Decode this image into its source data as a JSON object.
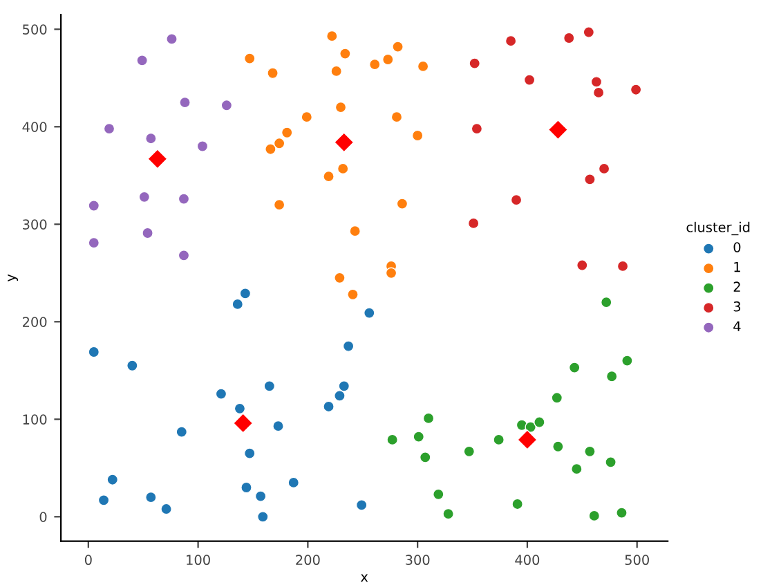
{
  "chart_data": {
    "type": "scatter",
    "xlabel": "x",
    "ylabel": "y",
    "legend_title": "cluster_id",
    "legend": "right",
    "grid": false,
    "marker": "circle",
    "xlim": [
      -25,
      528
    ],
    "ylim": [
      -25,
      515
    ],
    "xticks": [
      0,
      100,
      200,
      300,
      400,
      500
    ],
    "yticks": [
      0,
      100,
      200,
      300,
      400,
      500
    ],
    "series": [
      {
        "name": "0",
        "color": "#1f77b4",
        "x": [
          143,
          136,
          5,
          40,
          237,
          256,
          165,
          233,
          229,
          219,
          121,
          138,
          173,
          85,
          147,
          22,
          14,
          57,
          71,
          144,
          157,
          187,
          159,
          249
        ],
        "values": [
          229,
          218,
          169,
          155,
          175,
          209,
          134,
          134,
          124,
          113,
          126,
          111,
          93,
          87,
          65,
          38,
          17,
          20,
          8,
          30,
          21,
          35,
          0,
          12
        ]
      },
      {
        "name": "1",
        "color": "#ff7f0e",
        "x": [
          147,
          168,
          222,
          234,
          226,
          230,
          199,
          181,
          174,
          166,
          232,
          219,
          174,
          243,
          229,
          241,
          282,
          273,
          261,
          305,
          281,
          300,
          286,
          276,
          276
        ],
        "values": [
          470,
          455,
          493,
          475,
          457,
          420,
          410,
          394,
          383,
          377,
          357,
          349,
          320,
          293,
          245,
          228,
          482,
          469,
          464,
          462,
          410,
          391,
          321,
          257,
          250
        ]
      },
      {
        "name": "2",
        "color": "#2ca02c",
        "x": [
          472,
          443,
          491,
          477,
          427,
          310,
          395,
          403,
          411,
          277,
          301,
          374,
          347,
          307,
          428,
          457,
          476,
          445,
          319,
          328,
          391,
          461,
          486
        ],
        "values": [
          220,
          153,
          160,
          144,
          122,
          101,
          94,
          92,
          97,
          79,
          82,
          79,
          67,
          61,
          72,
          67,
          56,
          49,
          23,
          3,
          13,
          1,
          4
        ]
      },
      {
        "name": "3",
        "color": "#d62728",
        "x": [
          385,
          438,
          456,
          352,
          402,
          463,
          465,
          499,
          354,
          470,
          457,
          390,
          351,
          450,
          487
        ],
        "values": [
          488,
          491,
          497,
          465,
          448,
          446,
          435,
          438,
          398,
          357,
          346,
          325,
          301,
          258,
          257
        ]
      },
      {
        "name": "4",
        "color": "#9467bd",
        "x": [
          76,
          49,
          88,
          126,
          19,
          57,
          104,
          51,
          87,
          5,
          54,
          5,
          87
        ],
        "values": [
          490,
          468,
          425,
          422,
          398,
          388,
          380,
          328,
          326,
          319,
          291,
          281,
          268
        ]
      },
      {
        "color": "#ff0000",
        "marker": "diamond",
        "x": [
          141,
          233,
          400,
          428,
          63
        ],
        "values": [
          96,
          384,
          79,
          397,
          367
        ]
      }
    ]
  }
}
